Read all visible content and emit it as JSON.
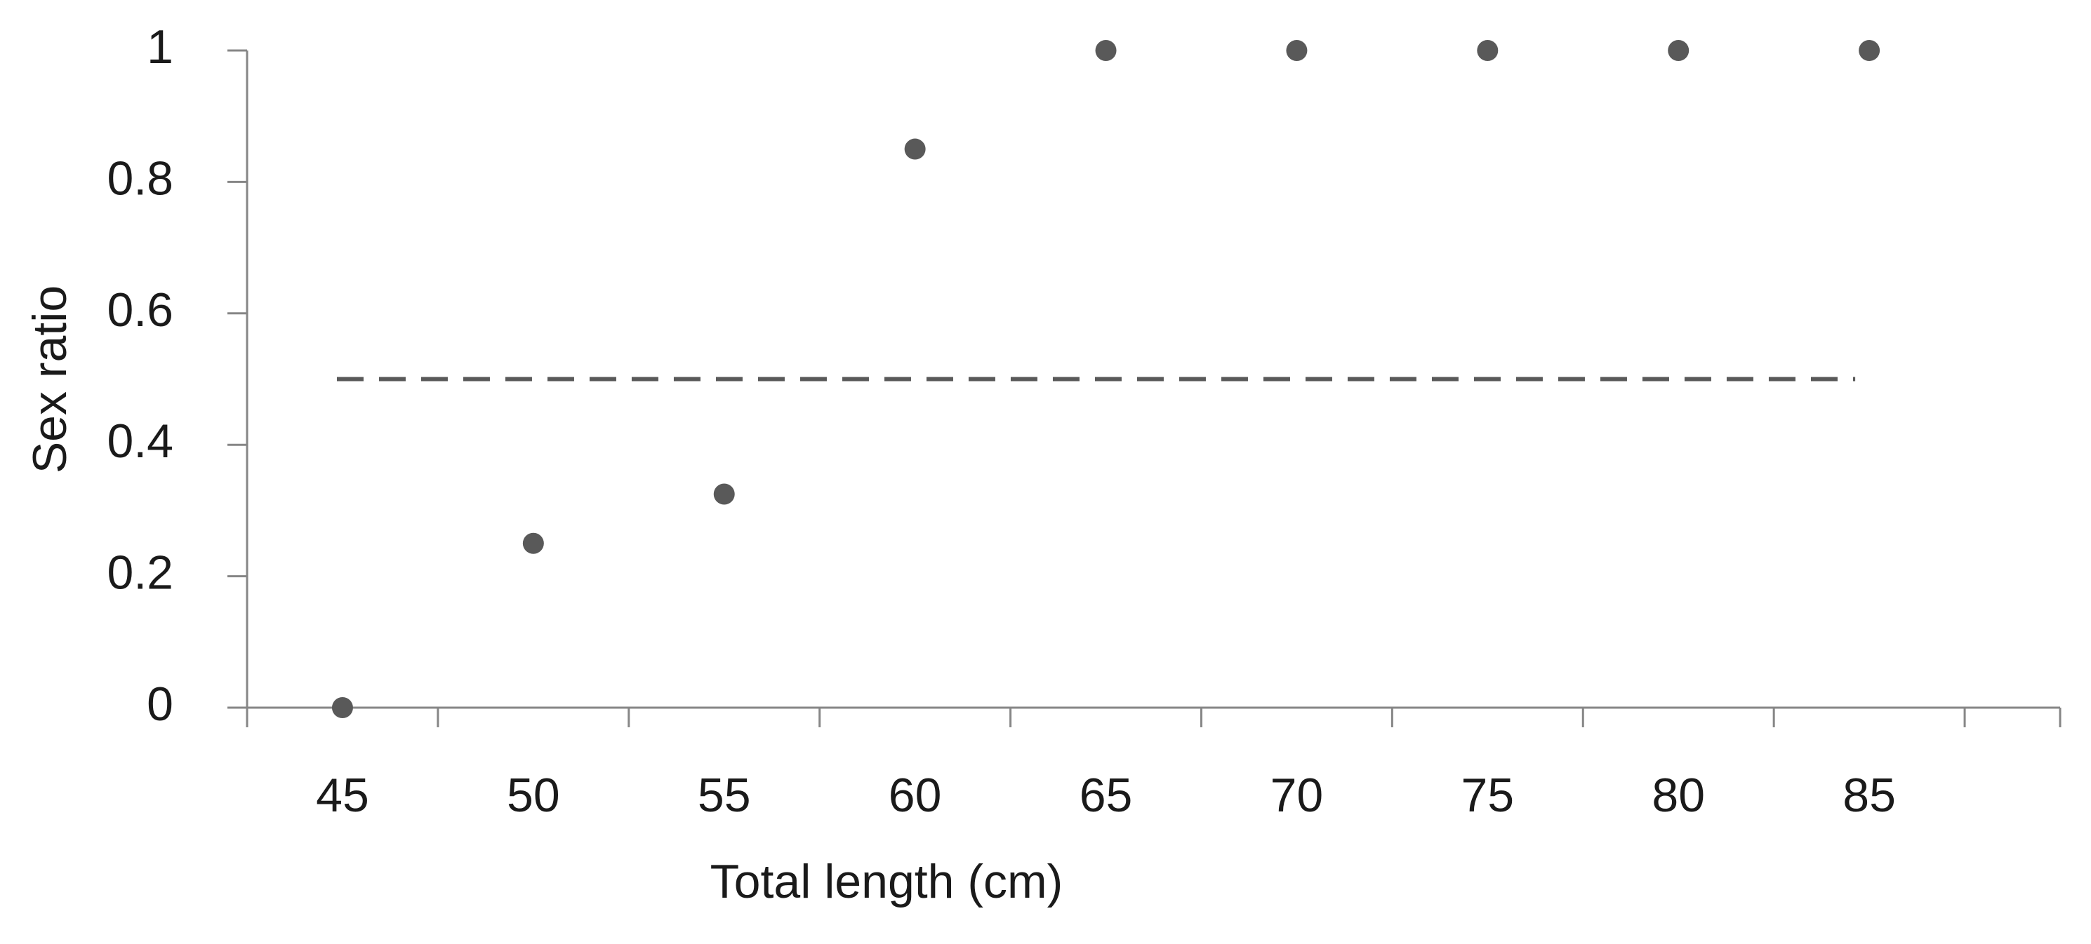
{
  "chart_data": {
    "type": "scatter",
    "x_label": "Total length (cm)",
    "y_label": "Sex ratio",
    "categories": [
      "45",
      "50",
      "55",
      "60",
      "65",
      "70",
      "75",
      "80",
      "85"
    ],
    "values": [
      0,
      0.25,
      0.325,
      0.85,
      1,
      1,
      1,
      1,
      1
    ],
    "color": "#595959",
    "reference_line": 0.5,
    "reference_line_color": "#595959",
    "ylim": [
      0,
      1
    ],
    "yticks": [
      0,
      0.2,
      0.4,
      0.6,
      0.8,
      1
    ],
    "grid": false
  }
}
